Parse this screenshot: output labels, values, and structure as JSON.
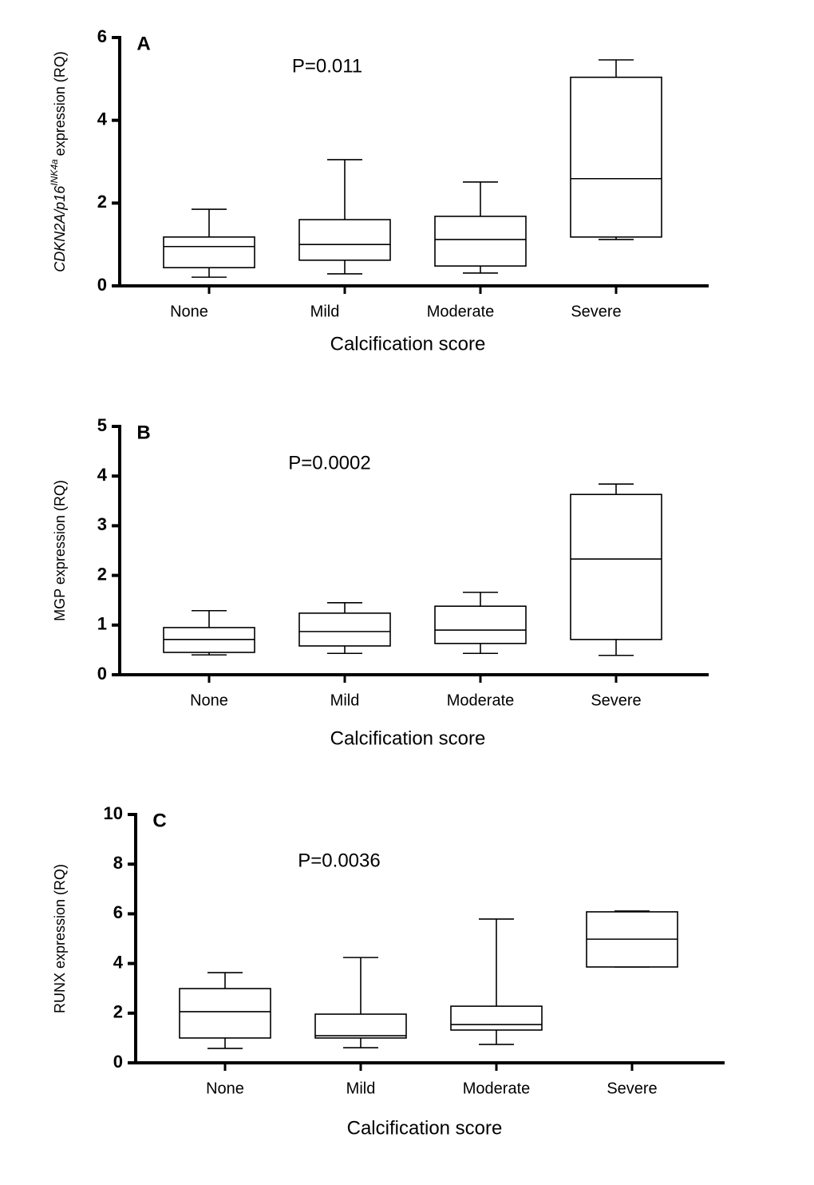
{
  "chart_data": [
    {
      "type": "box",
      "panel_label": "A",
      "annotation": "P=0.011",
      "y_label": [
        "CDKN2A/p16",
        "INK4a",
        "expression (RQ)"
      ],
      "x_label": "Calcification score",
      "categories": [
        "None",
        "Mild",
        "Moderate",
        "Severe"
      ],
      "boxes": [
        {
          "min": 0.21,
          "q1": 0.44,
          "median": 0.95,
          "q3": 1.18,
          "max": 1.85
        },
        {
          "min": 0.29,
          "q1": 0.62,
          "median": 1.0,
          "q3": 1.6,
          "max": 3.05
        },
        {
          "min": 0.31,
          "q1": 0.48,
          "median": 1.12,
          "q3": 1.68,
          "max": 2.51
        },
        {
          "min": 1.12,
          "q1": 1.18,
          "median": 2.59,
          "q3": 5.04,
          "max": 5.46
        }
      ],
      "ylim": [
        0,
        6
      ],
      "yticks": [
        0,
        2,
        4,
        6
      ],
      "color": "#000000"
    },
    {
      "type": "box",
      "panel_label": "B",
      "annotation": "P=0.0002",
      "y_label": "MGP expression (RQ)",
      "x_label": "Calcification score",
      "categories": [
        "None",
        "Mild",
        "Moderate",
        "Severe"
      ],
      "boxes": [
        {
          "min": 0.4,
          "q1": 0.45,
          "median": 0.71,
          "q3": 0.95,
          "max": 1.29
        },
        {
          "min": 0.43,
          "q1": 0.58,
          "median": 0.87,
          "q3": 1.24,
          "max": 1.45
        },
        {
          "min": 0.43,
          "q1": 0.63,
          "median": 0.9,
          "q3": 1.38,
          "max": 1.66
        },
        {
          "min": 0.39,
          "q1": 0.71,
          "median": 2.33,
          "q3": 3.63,
          "max": 3.84
        }
      ],
      "ylim": [
        0,
        5
      ],
      "yticks": [
        0,
        1,
        2,
        3,
        4,
        5
      ],
      "color": "#000000"
    },
    {
      "type": "box",
      "panel_label": "C",
      "annotation": "P=0.0036",
      "y_label": "RUNX expression (RQ)",
      "x_label": "Calcification score",
      "categories": [
        "None",
        "Mild",
        "Moderate",
        "Severe"
      ],
      "boxes": [
        {
          "min": 0.58,
          "q1": 1.0,
          "median": 2.06,
          "q3": 2.99,
          "max": 3.63
        },
        {
          "min": 0.61,
          "q1": 1.0,
          "median": 1.09,
          "q3": 1.96,
          "max": 4.24
        },
        {
          "min": 0.74,
          "q1": 1.32,
          "median": 1.54,
          "q3": 2.28,
          "max": 5.79
        },
        {
          "min": 3.86,
          "q1": 3.86,
          "median": 4.98,
          "q3": 6.08,
          "max": 6.11
        }
      ],
      "ylim": [
        0,
        10
      ],
      "yticks": [
        0,
        2,
        4,
        6,
        8,
        10
      ],
      "color": "#000000"
    }
  ]
}
